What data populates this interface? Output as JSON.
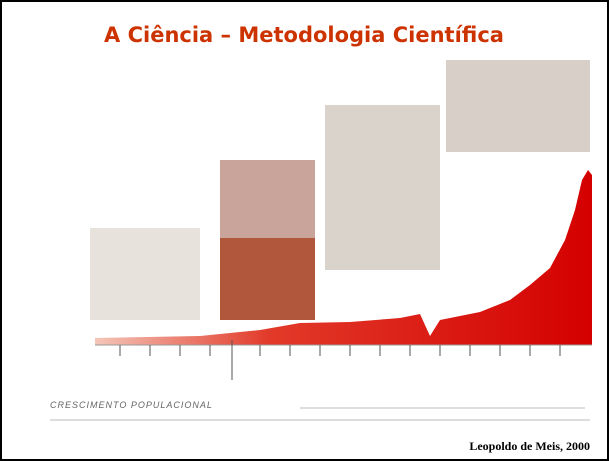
{
  "slide": {
    "title": "A Ciência – Metodologia Científica",
    "figure_caption": "CRESCIMENTO POPULACIONAL",
    "credit": "Leopoldo de Meis, 2000"
  }
}
